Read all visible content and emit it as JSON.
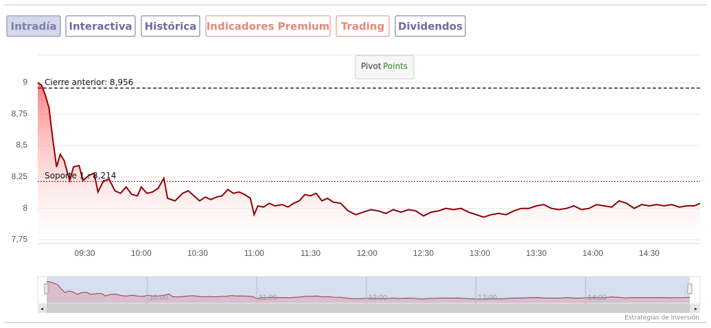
{
  "tabs": [
    "Intradía",
    "Interactiva",
    "Histórica",
    "Indicadores Premium",
    "Trading",
    "Dividendos"
  ],
  "pivot_button": [
    "Pivot",
    "Points"
  ],
  "footer": "Estrategias de Inversión",
  "chart_data": {
    "type": "line",
    "x": [
      "09:05",
      "09:07",
      "09:09",
      "09:11",
      "09:13",
      "09:15",
      "09:17",
      "09:19",
      "09:22",
      "09:24",
      "09:27",
      "09:29",
      "09:32",
      "09:35",
      "09:37",
      "09:40",
      "09:43",
      "09:46",
      "09:49",
      "09:52",
      "09:55",
      "09:58",
      "10:00",
      "10:03",
      "10:06",
      "10:09",
      "10:12",
      "10:14",
      "10:18",
      "10:22",
      "10:25",
      "10:28",
      "10:31",
      "10:34",
      "10:37",
      "10:40",
      "10:43",
      "10:46",
      "10:49",
      "10:52",
      "10:55",
      "10:58",
      "11:00",
      "11:02",
      "11:05",
      "11:08",
      "11:11",
      "11:15",
      "11:18",
      "11:21",
      "11:24",
      "11:27",
      "11:30",
      "11:33",
      "11:36",
      "11:39",
      "11:42",
      "11:46",
      "11:50",
      "11:54",
      "11:58",
      "12:02",
      "12:06",
      "12:10",
      "12:14",
      "12:18",
      "12:22",
      "12:26",
      "12:30",
      "12:34",
      "12:38",
      "12:42",
      "12:46",
      "12:50",
      "12:54",
      "12:58",
      "13:02",
      "13:06",
      "13:10",
      "13:14",
      "13:18",
      "13:22",
      "13:26",
      "13:30",
      "13:34",
      "13:38",
      "13:42",
      "13:46",
      "13:50",
      "13:54",
      "13:58",
      "14:02",
      "14:06",
      "14:10",
      "14:14",
      "14:18",
      "14:22",
      "14:26",
      "14:30",
      "14:34",
      "14:38",
      "14:42",
      "14:46",
      "14:50",
      "14:54",
      "14:57"
    ],
    "series": [
      {
        "color": "#8b0000",
        "values": [
          9.0,
          8.98,
          8.9,
          8.8,
          8.55,
          8.33,
          8.43,
          8.38,
          8.22,
          8.33,
          8.34,
          8.22,
          8.26,
          8.28,
          8.13,
          8.22,
          8.23,
          8.14,
          8.12,
          8.17,
          8.11,
          8.1,
          8.17,
          8.12,
          8.13,
          8.16,
          8.24,
          8.08,
          8.06,
          8.12,
          8.14,
          8.1,
          8.06,
          8.09,
          8.07,
          8.09,
          8.1,
          8.15,
          8.12,
          8.13,
          8.11,
          8.08,
          7.95,
          8.02,
          8.01,
          8.04,
          8.02,
          8.03,
          8.01,
          8.04,
          8.06,
          8.11,
          8.1,
          8.12,
          8.06,
          8.08,
          8.05,
          8.04,
          7.98,
          7.95,
          7.97,
          7.99,
          7.98,
          7.96,
          7.99,
          7.97,
          7.99,
          7.98,
          7.94,
          7.97,
          7.98,
          8.0,
          7.99,
          8.0,
          7.97,
          7.95,
          7.93,
          7.95,
          7.96,
          7.95,
          7.98,
          8.0,
          8.0,
          8.02,
          8.03,
          8.0,
          7.99,
          8.0,
          8.02,
          7.99,
          8.0,
          8.03,
          8.02,
          8.01,
          8.06,
          8.04,
          8.0,
          8.03,
          8.02,
          8.03,
          8.02,
          8.03,
          8.01,
          8.02,
          8.02,
          8.04
        ]
      }
    ],
    "xlim": [
      "09:05",
      "14:57"
    ],
    "xticks": [
      "09:30",
      "10:00",
      "10:30",
      "11:00",
      "11:30",
      "12:00",
      "12:30",
      "13:00",
      "13:30",
      "14:00",
      "14:30"
    ],
    "ylim": [
      7.72,
      9.22
    ],
    "yticks": [
      {
        "value": 7.75,
        "label": "7,75"
      },
      8,
      {
        "value": 8.25,
        "label": "8,25"
      },
      {
        "value": 8.5,
        "label": "8,5"
      },
      {
        "value": 8.75,
        "label": "8,75"
      },
      9
    ],
    "grid": true,
    "reference_lines": [
      {
        "value": 8.956,
        "label": "Cierre anterior: 8,956"
      },
      {
        "value": 8.214,
        "label": "Soporte 1 : 8,214"
      }
    ],
    "navigator": {
      "xticks": [
        "10:00",
        "11:00",
        "12:00",
        "13:00",
        "14:00"
      ]
    }
  }
}
